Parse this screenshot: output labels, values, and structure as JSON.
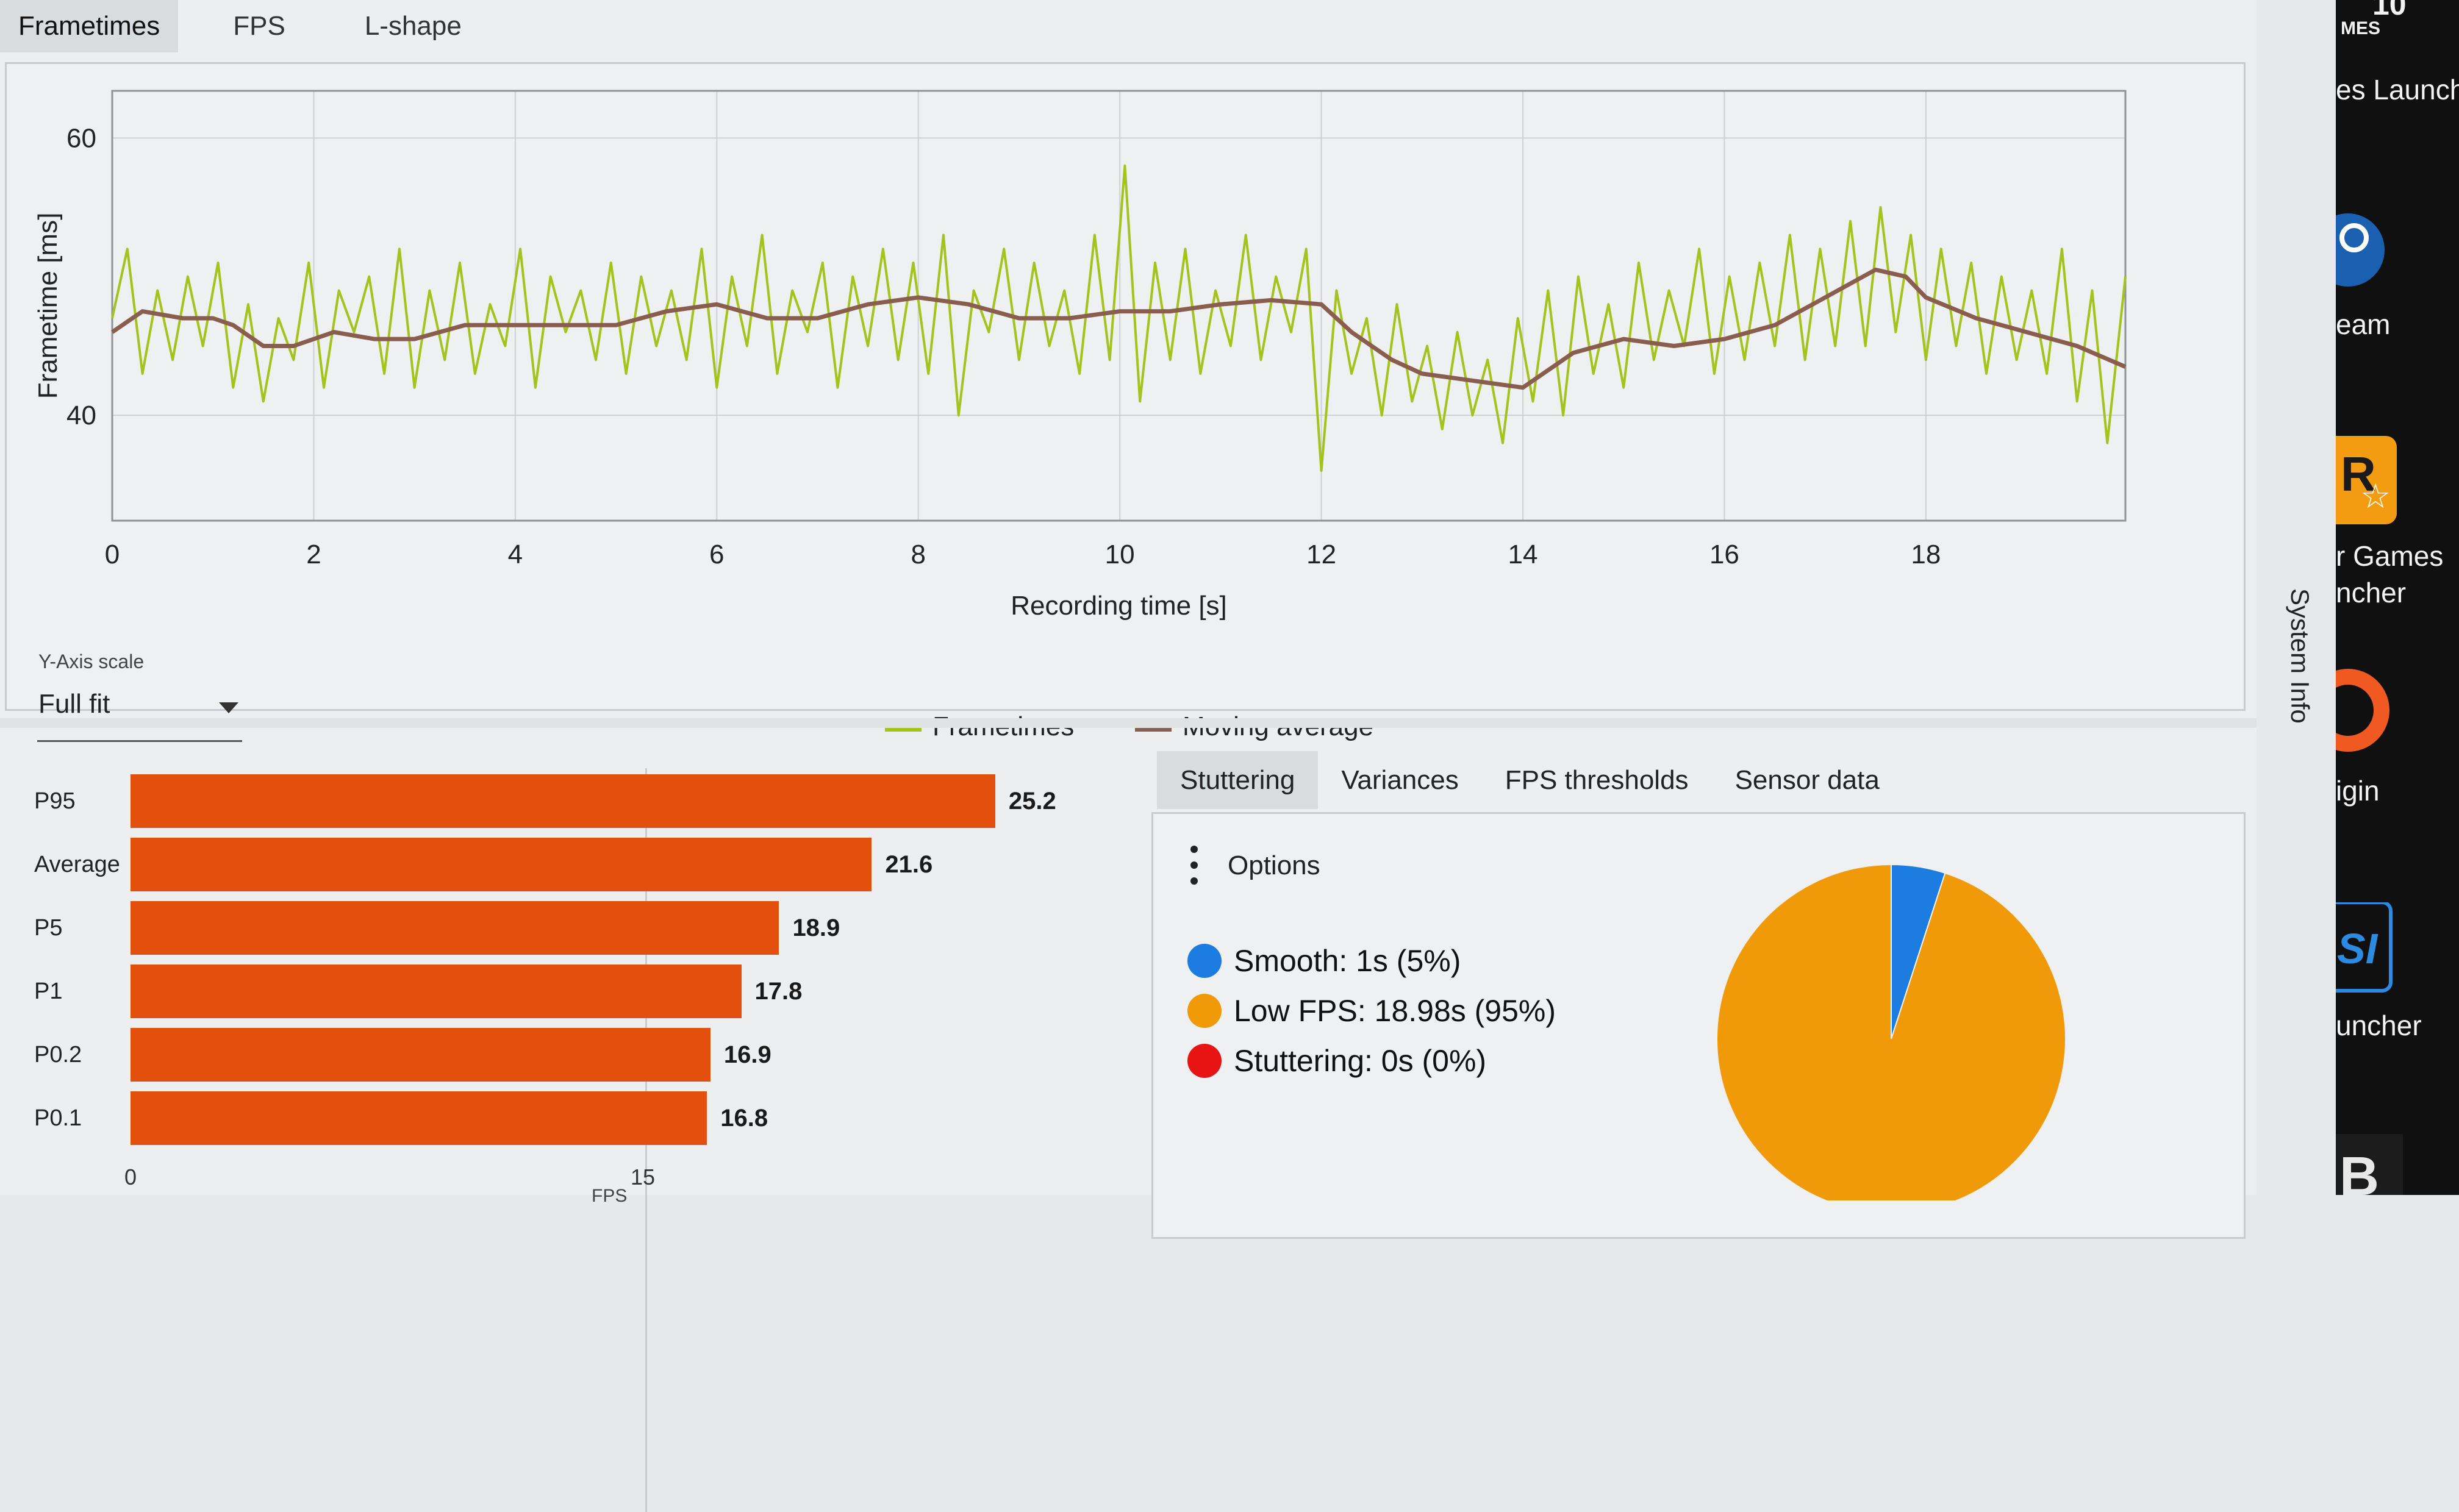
{
  "tabs": {
    "frametimes": "Frametimes",
    "fps": "FPS",
    "lshape": "L-shape"
  },
  "frametime_chart": {
    "y_axis_title": "Frametime [ms]",
    "x_axis_title": "Recording time [s]",
    "y_ticks": [
      "60",
      "40"
    ],
    "x_ticks": [
      "0",
      "2",
      "4",
      "6",
      "8",
      "10",
      "12",
      "14",
      "16",
      "18"
    ],
    "legend": {
      "frametimes": "Frametimes",
      "moving_average": "Moving average"
    },
    "colors": {
      "frametimes": "#a6c21c",
      "moving_average": "#8a5e4e"
    }
  },
  "y_axis_scale": {
    "label": "Y-Axis scale",
    "value": "Full fit"
  },
  "fps_bars": {
    "rows": [
      {
        "label": "P95",
        "value": "25.2"
      },
      {
        "label": "Average",
        "value": "21.6"
      },
      {
        "label": "P5",
        "value": "18.9"
      },
      {
        "label": "P1",
        "value": "17.8"
      },
      {
        "label": "P0.2",
        "value": "16.9"
      },
      {
        "label": "P0.1",
        "value": "16.8"
      }
    ],
    "ticks": [
      "0",
      "15"
    ],
    "axis_title": "FPS",
    "color": "#e34f0c"
  },
  "sub_tabs": [
    "Stuttering",
    "Variances",
    "FPS thresholds",
    "Sensor data"
  ],
  "stuttering": {
    "options_label": "Options",
    "legend": [
      {
        "label": "Smooth:  1s (5%)",
        "color": "#1c7ce0"
      },
      {
        "label": "Low FPS:  18.98s (95%)",
        "color": "#f09a0a"
      },
      {
        "label": "Stuttering:  0s (0%)",
        "color": "#e81414"
      }
    ]
  },
  "sidebar": {
    "system_info": "System Info"
  },
  "taskbar": {
    "items": [
      "MES",
      "es Launche",
      "eam",
      "r Games",
      "ncher",
      "igin",
      "uncher"
    ],
    "partial_digits": "10"
  },
  "chart_data": [
    {
      "type": "line",
      "title": "",
      "xlabel": "Recording time [s]",
      "ylabel": "Frametime [ms]",
      "xlim": [
        0,
        19.98
      ],
      "ylim": [
        32.4,
        63.4
      ],
      "y_ticks": [
        40,
        60
      ],
      "x_ticks": [
        0,
        2,
        4,
        6,
        8,
        10,
        12,
        14,
        16,
        18
      ],
      "grid": true,
      "legend_position": "bottom-center",
      "series": [
        {
          "name": "Moving average",
          "x": [
            0,
            0.3,
            0.7,
            1.0,
            1.2,
            1.5,
            1.8,
            2.2,
            2.6,
            3.0,
            3.5,
            4.0,
            4.5,
            5.0,
            5.5,
            6.0,
            6.5,
            7.0,
            7.5,
            8.0,
            8.5,
            9.0,
            9.5,
            10.0,
            10.5,
            11.0,
            11.5,
            12.0,
            12.3,
            12.7,
            13.0,
            13.5,
            14.0,
            14.5,
            15.0,
            15.5,
            16.0,
            16.5,
            17.0,
            17.5,
            17.8,
            18.0,
            18.5,
            19.0,
            19.5,
            19.98
          ],
          "y": [
            46,
            47.5,
            47,
            47,
            46.5,
            45,
            45,
            46,
            45.5,
            45.5,
            46.5,
            46.5,
            46.5,
            46.5,
            47.5,
            48,
            47,
            47,
            48,
            48.5,
            48,
            47,
            47,
            47.5,
            47.5,
            48,
            48.3,
            48,
            46,
            44,
            43,
            42.5,
            42,
            44.5,
            45.5,
            45,
            45.5,
            46.5,
            48.5,
            50.5,
            50,
            48.5,
            47,
            46,
            45,
            43.5
          ]
        },
        {
          "name": "Frametimes",
          "x": [
            0,
            0.15,
            0.3,
            0.45,
            0.6,
            0.75,
            0.9,
            1.05,
            1.2,
            1.35,
            1.5,
            1.65,
            1.8,
            1.95,
            2.1,
            2.25,
            2.4,
            2.55,
            2.7,
            2.85,
            3.0,
            3.15,
            3.3,
            3.45,
            3.6,
            3.75,
            3.9,
            4.05,
            4.2,
            4.35,
            4.5,
            4.65,
            4.8,
            4.95,
            5.1,
            5.25,
            5.4,
            5.55,
            5.7,
            5.85,
            6.0,
            6.15,
            6.3,
            6.45,
            6.6,
            6.75,
            6.9,
            7.05,
            7.2,
            7.35,
            7.5,
            7.65,
            7.8,
            7.95,
            8.1,
            8.25,
            8.4,
            8.55,
            8.7,
            8.85,
            9.0,
            9.15,
            9.3,
            9.45,
            9.6,
            9.75,
            9.9,
            10.05,
            10.2,
            10.35,
            10.5,
            10.65,
            10.8,
            10.95,
            11.1,
            11.25,
            11.4,
            11.55,
            11.7,
            11.85,
            12.0,
            12.15,
            12.3,
            12.45,
            12.6,
            12.75,
            12.9,
            13.05,
            13.2,
            13.35,
            13.5,
            13.65,
            13.8,
            13.95,
            14.1,
            14.25,
            14.4,
            14.55,
            14.7,
            14.85,
            15.0,
            15.15,
            15.3,
            15.45,
            15.6,
            15.75,
            15.9,
            16.05,
            16.2,
            16.35,
            16.5,
            16.65,
            16.8,
            16.95,
            17.1,
            17.25,
            17.4,
            17.55,
            17.7,
            17.85,
            18.0,
            18.15,
            18.3,
            18.45,
            18.6,
            18.75,
            18.9,
            19.05,
            19.2,
            19.35,
            19.5,
            19.65,
            19.8,
            19.98
          ],
          "y": [
            47,
            52,
            43,
            49,
            44,
            50,
            45,
            51,
            42,
            48,
            41,
            47,
            44,
            51,
            42,
            49,
            46,
            50,
            43,
            52,
            42,
            49,
            44,
            51,
            43,
            48,
            45,
            52,
            42,
            50,
            46,
            49,
            44,
            51,
            43,
            50,
            45,
            49,
            44,
            52,
            42,
            50,
            45,
            53,
            43,
            49,
            46,
            51,
            42,
            50,
            45,
            52,
            44,
            51,
            43,
            53,
            40,
            49,
            46,
            52,
            44,
            51,
            45,
            49,
            43,
            53,
            44,
            58,
            41,
            51,
            44,
            52,
            43,
            49,
            45,
            53,
            44,
            50,
            46,
            52,
            36,
            49,
            43,
            47,
            40,
            48,
            41,
            45,
            39,
            46,
            40,
            44,
            38,
            47,
            41,
            49,
            40,
            50,
            43,
            48,
            42,
            51,
            44,
            49,
            45,
            52,
            43,
            50,
            44,
            51,
            45,
            53,
            44,
            52,
            45,
            54,
            45,
            55,
            46,
            53,
            44,
            52,
            45,
            51,
            43,
            50,
            44,
            49,
            43,
            52,
            41,
            49,
            38,
            50
          ]
        }
      ]
    },
    {
      "type": "bar",
      "orientation": "horizontal",
      "categories": [
        "P95",
        "Average",
        "P5",
        "P1",
        "P0.2",
        "P0.1"
      ],
      "values": [
        25.2,
        21.6,
        18.9,
        17.8,
        16.9,
        16.8
      ],
      "xlabel": "FPS",
      "x_ticks": [
        0,
        15
      ],
      "xlim": [
        0,
        34
      ]
    },
    {
      "type": "pie",
      "categories": [
        "Smooth",
        "Low FPS",
        "Stuttering"
      ],
      "values": [
        5,
        95,
        0
      ],
      "colors": [
        "#1c7ce0",
        "#f09a0a",
        "#e81414"
      ]
    }
  ]
}
